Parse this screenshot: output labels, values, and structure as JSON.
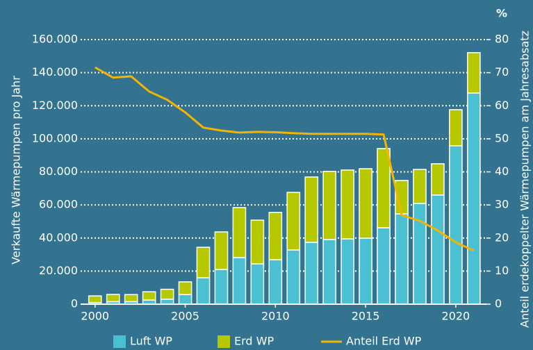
{
  "chart_data": {
    "type": "bar",
    "stacked": true,
    "x": [
      2000,
      2001,
      2002,
      2003,
      2004,
      2005,
      2006,
      2007,
      2008,
      2009,
      2010,
      2011,
      2012,
      2013,
      2014,
      2015,
      2016,
      2017,
      2018,
      2019,
      2020,
      2021
    ],
    "series": [
      {
        "name": "Luft WP",
        "color": "#4bc0d2",
        "values": [
          1000,
          1500,
          1500,
          2500,
          3000,
          5800,
          16000,
          21000,
          28200,
          24400,
          26900,
          32800,
          37400,
          39100,
          39500,
          39900,
          46200,
          54600,
          60900,
          66000,
          95800,
          127700
        ]
      },
      {
        "name": "Erd WP",
        "color": "#b6c800",
        "values": [
          4000,
          4400,
          4300,
          5000,
          6000,
          7700,
          18400,
          22700,
          30200,
          26400,
          28600,
          34800,
          39500,
          41200,
          41600,
          42000,
          47900,
          20200,
          20600,
          18900,
          21800,
          24400
        ]
      },
      {
        "name": "Anteil Erd WP",
        "type": "line",
        "axis": "y2",
        "color": "#f5b400",
        "values": [
          71.6,
          68.5,
          68.9,
          64.3,
          61.8,
          58.0,
          53.4,
          52.5,
          51.9,
          52.1,
          52.0,
          51.7,
          51.5,
          51.5,
          51.5,
          51.5,
          51.3,
          26.9,
          25.2,
          22.3,
          18.7,
          16.2
        ]
      }
    ],
    "y_label": "Verkaufte Wärmepumpen pro Jahr",
    "y2_label": "Anteil erdekoppelter Wärmepumpen am Jahresabsatz",
    "y2_unit": "%",
    "xlim": [
      1999.2,
      2021.7
    ],
    "xticks": [
      2000,
      2005,
      2010,
      2015,
      2020
    ],
    "ylim": [
      0,
      160000
    ],
    "yticks": [
      0,
      {
        "value": 20000,
        "label": "20.000"
      },
      {
        "value": 40000,
        "label": "40.000"
      },
      {
        "value": 60000,
        "label": "60.000"
      },
      {
        "value": 80000,
        "label": "80.000"
      },
      {
        "value": 100000,
        "label": "100.000"
      },
      {
        "value": 120000,
        "label": "120.000"
      },
      {
        "value": 140000,
        "label": "140.000"
      },
      {
        "value": 160000,
        "label": "160.000"
      }
    ],
    "y2lim": [
      0,
      80
    ],
    "y2ticks": [
      0,
      10,
      20,
      30,
      40,
      50,
      60,
      70,
      80
    ],
    "grid": true
  }
}
